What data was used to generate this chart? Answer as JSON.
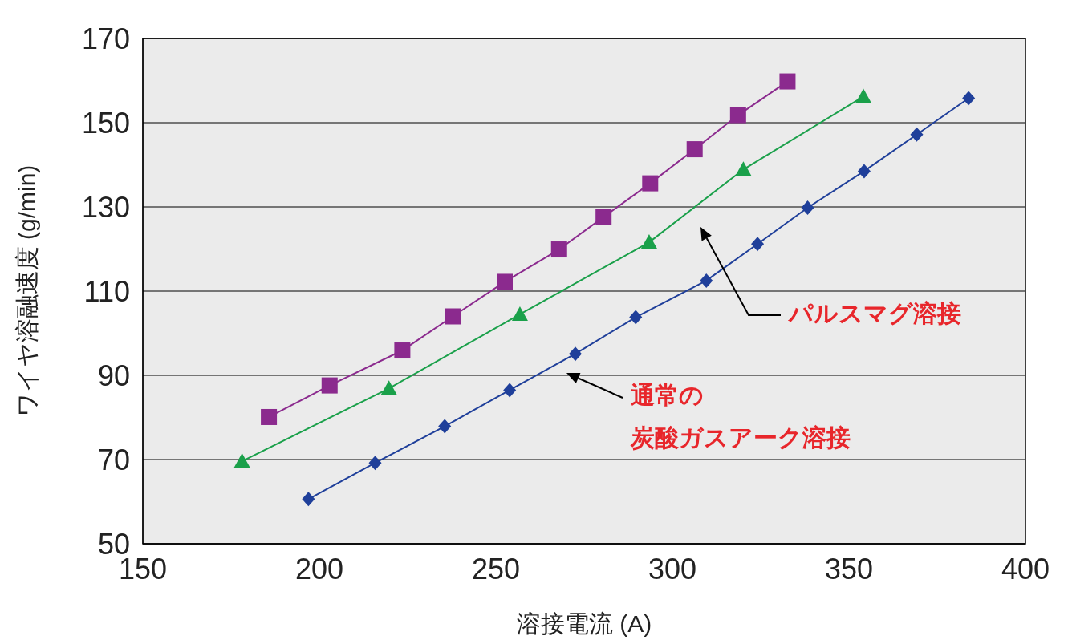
{
  "chart_data": {
    "type": "line",
    "xlabel": "溶接電流 (A)",
    "ylabel": "ワイヤ溶融速度 (g/min)",
    "xlim": [
      150,
      400
    ],
    "xticks": [
      150,
      200,
      250,
      300,
      350,
      400
    ],
    "ylim": [
      50,
      170
    ],
    "yticks": [
      50,
      70,
      90,
      110,
      130,
      150,
      170
    ],
    "grid": "y",
    "series": [
      {
        "color": "#8b2a8e",
        "marker": "square",
        "x": [
          185.7,
          202.9,
          223.5,
          237.8,
          252.5,
          267.9,
          280.5,
          293.7,
          306.3,
          318.6,
          332.6
        ],
        "values": [
          80.1,
          87.6,
          95.9,
          104.0,
          112.2,
          119.9,
          127.6,
          135.6,
          143.7,
          151.8,
          159.8
        ]
      },
      {
        "color": "#1aa04a",
        "marker": "triangle",
        "x": [
          178.1,
          219.7,
          256.8,
          293.4,
          320.1,
          354.1
        ],
        "values": [
          69.6,
          86.9,
          104.5,
          121.6,
          138.9,
          156.2
        ]
      },
      {
        "color": "#1f3f9a",
        "marker": "diamond",
        "x": [
          196.9,
          215.8,
          235.5,
          253.9,
          272.5,
          289.6,
          309.6,
          324.1,
          338.3,
          354.3,
          369.2,
          383.9
        ],
        "values": [
          60.6,
          69.2,
          77.9,
          86.5,
          95.1,
          103.8,
          112.5,
          121.2,
          129.8,
          138.5,
          147.2,
          155.8
        ]
      }
    ],
    "annotations": [
      "パルスマグ溶接",
      "通常の",
      "炭酸ガスアーク溶接"
    ]
  }
}
